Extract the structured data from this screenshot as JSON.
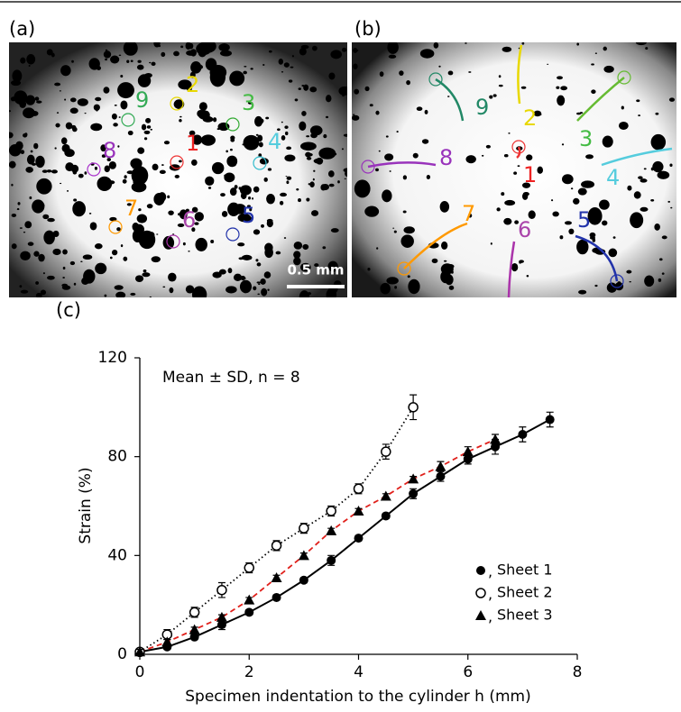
{
  "panels": {
    "a": {
      "label": "(a)",
      "markers": [
        "1",
        "2",
        "3",
        "4",
        "5",
        "6",
        "7",
        "8",
        "9"
      ],
      "scale_bar": "0.5 mm"
    },
    "b": {
      "label": "(b)",
      "markers": [
        "1",
        "2",
        "3",
        "4",
        "5",
        "6",
        "7",
        "8",
        "9"
      ]
    },
    "c": {
      "label": "(c)"
    }
  },
  "chart_data": {
    "type": "line",
    "annotation": "Mean ± SD, n = 8",
    "x_label": "Specimen indentation to the cylinder h (mm)",
    "y_label": "Strain (%)",
    "xlim": [
      0,
      8
    ],
    "xticks": [
      0,
      2,
      4,
      6,
      8
    ],
    "ylim": [
      0,
      120
    ],
    "yticks": [
      0,
      40,
      80,
      120
    ],
    "legend_separator": ",",
    "legend_position": "lower right",
    "series": [
      {
        "name": "Sheet 1",
        "color": "#000000",
        "line_color": "#000000",
        "line_style": "solid",
        "marker": "circle",
        "x": [
          0,
          0.5,
          1,
          1.5,
          2,
          2.5,
          3,
          3.5,
          4,
          4.5,
          5,
          5.5,
          6,
          6.5,
          7,
          7.5
        ],
        "values": [
          1,
          3,
          7,
          12,
          17,
          23,
          30,
          38,
          47,
          56,
          65,
          72,
          79,
          84,
          89,
          95
        ],
        "errors": [
          1,
          1,
          1,
          2,
          1,
          1,
          1,
          2,
          1,
          1,
          2,
          2,
          2,
          3,
          3,
          3
        ]
      },
      {
        "name": "Sheet 2",
        "color": "#000000",
        "line_color": "#000000",
        "line_style": "dotted",
        "marker": "open-circle",
        "x": [
          0,
          0.5,
          1,
          1.5,
          2,
          2.5,
          3,
          3.5,
          4,
          4.5,
          5
        ],
        "values": [
          1,
          8,
          17,
          26,
          35,
          44,
          51,
          58,
          67,
          82,
          100
        ],
        "errors": [
          1,
          2,
          2,
          3,
          2,
          2,
          2,
          2,
          2,
          3,
          5
        ]
      },
      {
        "name": "Sheet 3",
        "color": "#000000",
        "line_color": "#e0201b",
        "line_style": "dashed",
        "marker": "triangle",
        "x": [
          0,
          0.5,
          1,
          1.5,
          2,
          2.5,
          3,
          3.5,
          4,
          4.5,
          5,
          5.5,
          6,
          6.5
        ],
        "values": [
          1,
          5,
          10,
          15,
          22,
          31,
          40,
          50,
          58,
          64,
          71,
          76,
          82,
          87
        ],
        "errors": [
          1,
          1,
          1,
          1,
          1,
          1,
          1,
          1,
          1,
          1,
          1,
          2,
          2,
          2
        ]
      }
    ]
  }
}
